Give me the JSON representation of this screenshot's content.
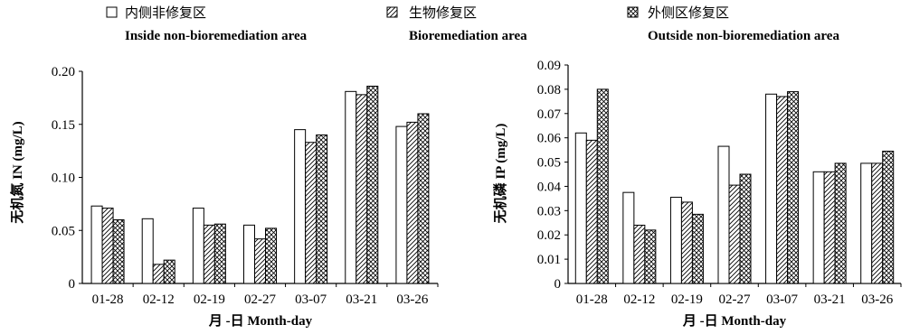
{
  "legend": [
    {
      "swatch": "white",
      "zh": "内侧非修复区",
      "en": "Inside non-bioremediation area"
    },
    {
      "swatch": "diagonal",
      "zh": "生物修复区",
      "en": "Bioremediation area"
    },
    {
      "swatch": "crosshatch",
      "zh": "外侧区修复区",
      "en": "Outside non-bioremediation area"
    }
  ],
  "chart_data": [
    {
      "type": "bar",
      "categories": [
        "01-28",
        "02-12",
        "02-19",
        "02-27",
        "03-07",
        "03-21",
        "03-26"
      ],
      "ylim": [
        0,
        0.2
      ],
      "yticks": [
        0,
        0.05,
        0.1,
        0.15,
        0.2
      ],
      "ytick_labels": [
        "0",
        "0.05",
        "0.10",
        "0.15",
        "0.20"
      ],
      "ylabel": "无机氮 IN (mg/L)",
      "xlabel": "月 -日 Month-day",
      "series": [
        {
          "name": "内侧非修复区 Inside non-bioremediation area",
          "pattern": "white",
          "values": [
            0.073,
            0.061,
            0.071,
            0.055,
            0.145,
            0.181,
            0.148
          ]
        },
        {
          "name": "生物修复区 Bioremediation area",
          "pattern": "diagonal",
          "values": [
            0.071,
            0.018,
            0.055,
            0.042,
            0.133,
            0.178,
            0.152
          ]
        },
        {
          "name": "外侧区修复区 Outside non-bioremediation area",
          "pattern": "crosshatch",
          "values": [
            0.06,
            0.022,
            0.056,
            0.052,
            0.14,
            0.186,
            0.16
          ]
        }
      ]
    },
    {
      "type": "bar",
      "categories": [
        "01-28",
        "02-12",
        "02-19",
        "02-27",
        "03-07",
        "03-21",
        "03-26"
      ],
      "ylim": [
        0,
        0.09
      ],
      "yticks": [
        0,
        0.01,
        0.02,
        0.03,
        0.04,
        0.05,
        0.06,
        0.07,
        0.08,
        0.09
      ],
      "ytick_labels": [
        "0",
        "0.01",
        "0.02",
        "0.03",
        "0.04",
        "0.05",
        "0.06",
        "0.07",
        "0.08",
        "0.09"
      ],
      "ylabel": "无机磷 IP (mg/L)",
      "xlabel": "月 -日 Month-day",
      "series": [
        {
          "name": "内侧非修复区 Inside non-bioremediation area",
          "pattern": "white",
          "values": [
            0.062,
            0.0375,
            0.0355,
            0.0565,
            0.078,
            0.046,
            0.0495
          ]
        },
        {
          "name": "生物修复区 Bioremediation area",
          "pattern": "diagonal",
          "values": [
            0.059,
            0.024,
            0.0335,
            0.0405,
            0.077,
            0.046,
            0.0495
          ]
        },
        {
          "name": "外侧区修复区 Outside non-bioremediation area",
          "pattern": "crosshatch",
          "values": [
            0.08,
            0.022,
            0.0285,
            0.045,
            0.079,
            0.0495,
            0.0545
          ]
        }
      ]
    }
  ]
}
